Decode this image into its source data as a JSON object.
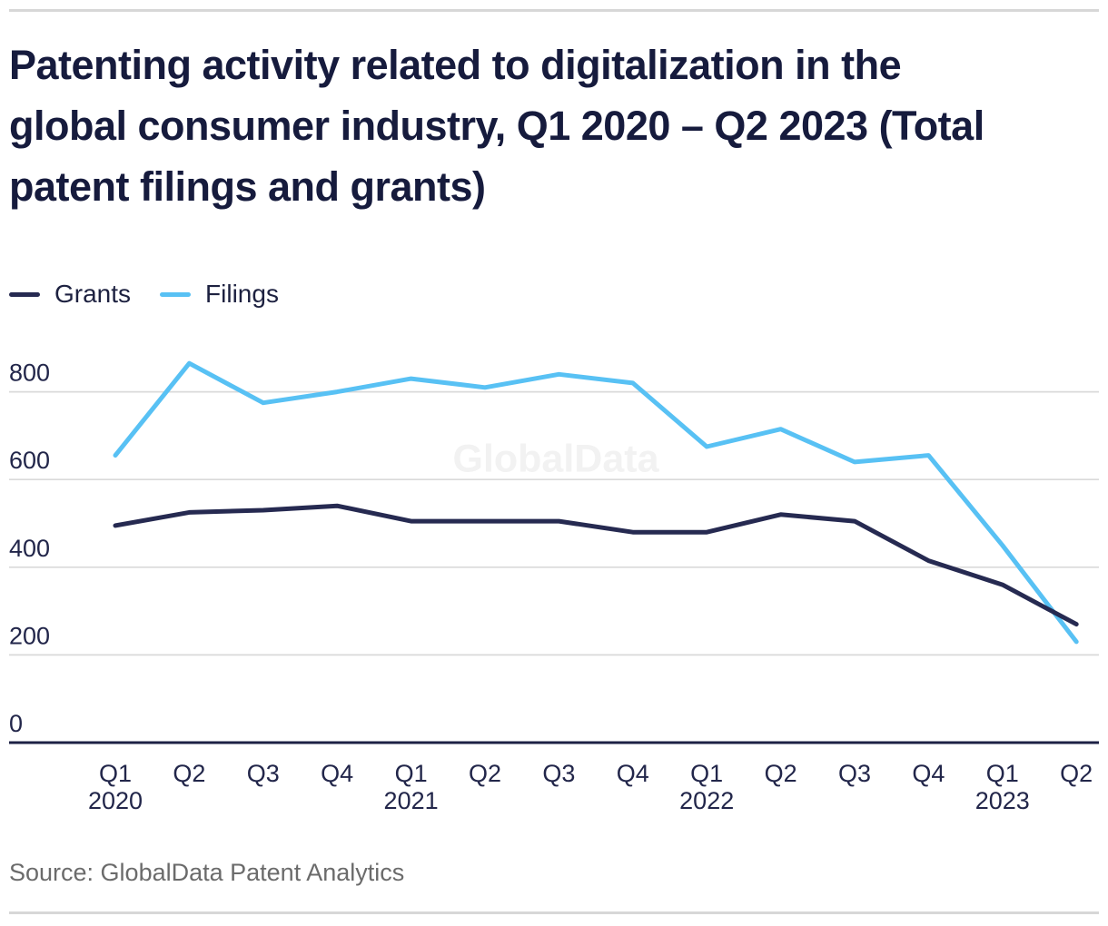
{
  "header": {
    "title": "Patenting activity related to digitalization in the global consumer industry, Q1 2020 – Q2 2023 (Total patent filings and grants)",
    "title_lines": [
      "Patenting activity related to digitalization in the",
      "global consumer industry, Q1 2020 – Q2 2023 (Total",
      "patent filings and grants)"
    ]
  },
  "legend": {
    "items": [
      {
        "label": "Grants",
        "color": "#262a51"
      },
      {
        "label": "Filings",
        "color": "#58c1f4"
      }
    ]
  },
  "watermark": {
    "text": "GlobalData"
  },
  "source": {
    "text": "Source: GlobalData Patent Analytics"
  },
  "colors": {
    "grid": "#d9d9d9",
    "axis": "#1d2145",
    "divider": "#d7d7d7",
    "tick_label": "#22264a",
    "title_text": "#161b3d",
    "source_text": "#6b6b6b",
    "watermark_text": "#f2f2f2"
  },
  "chart_data": {
    "type": "line",
    "title": "Patenting activity related to digitalization in the global consumer industry, Q1 2020 – Q2 2023 (Total patent filings and grants)",
    "categories": [
      "Q1 2020",
      "Q2 2020",
      "Q3 2020",
      "Q4 2020",
      "Q1 2021",
      "Q2 2021",
      "Q3 2021",
      "Q4 2021",
      "Q1 2022",
      "Q2 2022",
      "Q3 2022",
      "Q4 2022",
      "Q1 2023",
      "Q2 2023"
    ],
    "x_tick_quarters": [
      "Q1",
      "Q2",
      "Q3",
      "Q4",
      "Q1",
      "Q2",
      "Q3",
      "Q4",
      "Q1",
      "Q2",
      "Q3",
      "Q4",
      "Q1",
      "Q2"
    ],
    "x_tick_years": {
      "0": "2020",
      "4": "2021",
      "8": "2022",
      "12": "2023"
    },
    "series": [
      {
        "name": "Grants",
        "color": "#262a51",
        "values": [
          495,
          525,
          530,
          540,
          505,
          505,
          505,
          480,
          480,
          520,
          505,
          415,
          360,
          270
        ]
      },
      {
        "name": "Filings",
        "color": "#58c1f4",
        "values": [
          655,
          865,
          775,
          800,
          830,
          810,
          840,
          820,
          675,
          715,
          640,
          655,
          450,
          230
        ]
      }
    ],
    "yticks": [
      0,
      200,
      400,
      600,
      800
    ],
    "ylim": [
      0,
      900
    ],
    "xlabel": "",
    "ylabel": "",
    "grid": "horizontal-only",
    "legend_position": "top-left"
  }
}
